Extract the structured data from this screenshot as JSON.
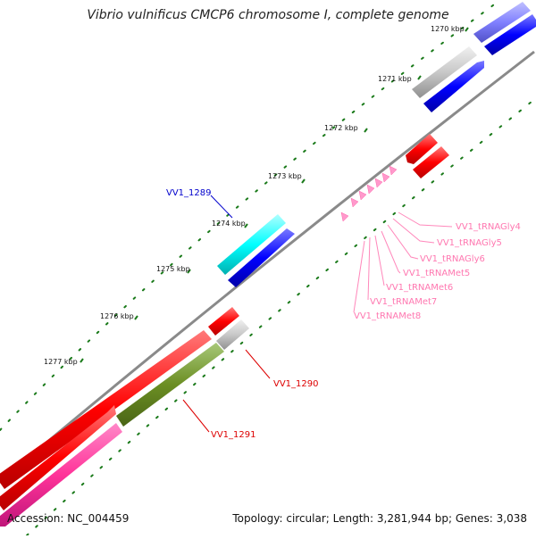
{
  "title": "Vibrio vulnificus CMCP6 chromosome I, complete genome",
  "accession": "Accession: NC_004459",
  "topology": "Topology: circular; Length: 3,281,944 bp; Genes: 3,038",
  "colors": {
    "backbone": "#8a8a8a",
    "tick": "#1a7a1a",
    "red": "#ff0000",
    "blue": "#0000ff",
    "cyan": "#00ffff",
    "gray": "#c8c8c8",
    "olive": "#6b8e23",
    "pink": "#ff3399",
    "trna": "#ff99cc",
    "purple": "#8080ff"
  },
  "ticks": [
    {
      "label": "1270 kbp"
    },
    {
      "label": "1271 kbp"
    },
    {
      "label": "1272 kbp"
    },
    {
      "label": "1273 kbp"
    },
    {
      "label": "1274 kbp"
    },
    {
      "label": "1275 kbp"
    },
    {
      "label": "1276 kbp"
    },
    {
      "label": "1277 kbp"
    }
  ],
  "labels": {
    "vv1_1289": "VV1_1289",
    "vv1_1290": "VV1_1290",
    "vv1_1291": "VV1_1291",
    "trna": [
      "VV1_tRNAGly4",
      "VV1_tRNAGly5",
      "VV1_tRNAGly6",
      "VV1_tRNAMet5",
      "VV1_tRNAMet6",
      "VV1_tRNAMet7",
      "VV1_tRNAMet8"
    ]
  }
}
